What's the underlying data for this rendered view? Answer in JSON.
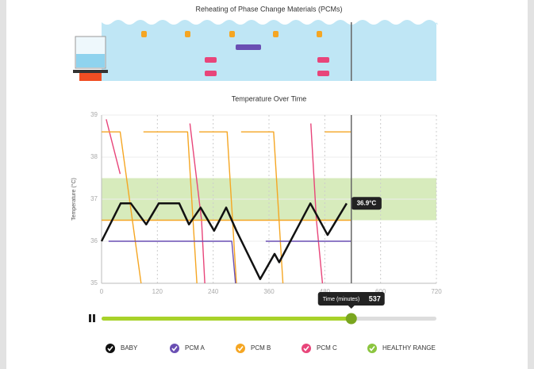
{
  "header": {
    "title": "Reheating of Phase Change Materials (PCMs)"
  },
  "chart_data": {
    "type": "line",
    "title": "Temperature Over Time",
    "y_label": "Temperature (°C)",
    "xlim": [
      0,
      720
    ],
    "ylim": [
      35,
      39
    ],
    "xticks": [
      0,
      120,
      240,
      360,
      480,
      600,
      720
    ],
    "yticks": [
      35,
      36,
      37,
      38,
      39
    ],
    "grid": true,
    "band": {
      "name": "HEALTHY RANGE",
      "from": 36.5,
      "to": 37.5,
      "color": "#8bc53f"
    },
    "series": [
      {
        "name": "BABY",
        "color": "#111111",
        "x": [
          0,
          41,
          63,
          96,
          123,
          167,
          188,
          213,
          242,
          268,
          290,
          341,
          372,
          382,
          449,
          486,
          527
        ],
        "values": [
          36,
          36.9,
          36.9,
          36.4,
          36.9,
          36.9,
          36.4,
          36.8,
          36.25,
          36.8,
          36.25,
          35.1,
          35.7,
          35.5,
          36.9,
          36.15,
          36.9
        ],
        "end_label": "36.9°C"
      },
      {
        "name": "PCM A",
        "color": "#6a4fb3",
        "x": [
          15,
          280,
          288,
          null,
          353,
          537
        ],
        "values": [
          36,
          36,
          35,
          null,
          36,
          36
        ]
      },
      {
        "name": "PCM B",
        "color": "#f5a623",
        "x": [
          0,
          40,
          85,
          null,
          90,
          185,
          205,
          null,
          210,
          270,
          290,
          null,
          300,
          370,
          390,
          null,
          480,
          537,
          null,
          0,
          537
        ],
        "values": [
          38.6,
          38.6,
          35,
          null,
          38.6,
          38.6,
          35,
          null,
          38.6,
          38.6,
          35,
          null,
          38.6,
          38.6,
          35,
          null,
          38.6,
          38.6,
          null,
          36.5,
          36.5
        ]
      },
      {
        "name": "PCM C",
        "color": "#e8457a",
        "x": [
          10,
          40,
          null,
          190,
          215,
          222,
          null,
          450,
          462,
          475
        ],
        "values": [
          38.9,
          37.6,
          null,
          38.8,
          36.5,
          35,
          null,
          38.8,
          36.5,
          35
        ]
      }
    ],
    "current_x": 537
  },
  "slider": {
    "label": "Time (minutes)",
    "value": 537
  }
}
